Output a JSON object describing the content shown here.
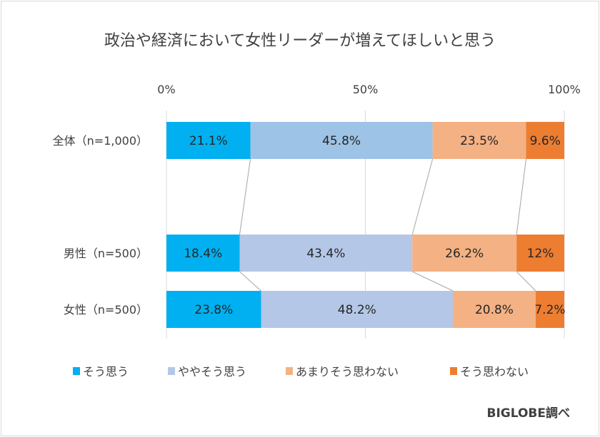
{
  "chart_data": {
    "type": "bar",
    "orientation": "horizontal",
    "stacked": "percent",
    "title": "政治や経済において女性リーダーが増えてほしいと思う",
    "categories": [
      "全体（n=1,000）",
      "男性（n=500）",
      "女性（n=500）"
    ],
    "series": [
      {
        "name": "そう思う",
        "values": [
          21.1,
          18.4,
          23.8
        ],
        "labels": [
          "21.1%",
          "18.4%",
          "23.8%"
        ],
        "color": "#00b0f0"
      },
      {
        "name": "ややそう思う",
        "values": [
          45.8,
          43.4,
          48.2
        ],
        "labels": [
          "45.8%",
          "43.4%",
          "48.2%"
        ],
        "color": "#b4c7e7",
        "first_row_color": "#9dc3e6"
      },
      {
        "name": "あまりそう思わない",
        "values": [
          23.5,
          26.2,
          20.8
        ],
        "labels": [
          "23.5%",
          "26.2%",
          "20.8%"
        ],
        "color": "#f4b183"
      },
      {
        "name": "そう思わない",
        "values": [
          9.6,
          12,
          7.2
        ],
        "labels": [
          "9.6%",
          "12%",
          "7.2%"
        ],
        "color": "#ed7d31"
      }
    ],
    "xticks": [
      "0%",
      "50%",
      "100%"
    ],
    "xlim": [
      0,
      100
    ],
    "grid": true,
    "series_lines": true,
    "legend_position": "bottom"
  },
  "source": "BIGLOBE調べ"
}
